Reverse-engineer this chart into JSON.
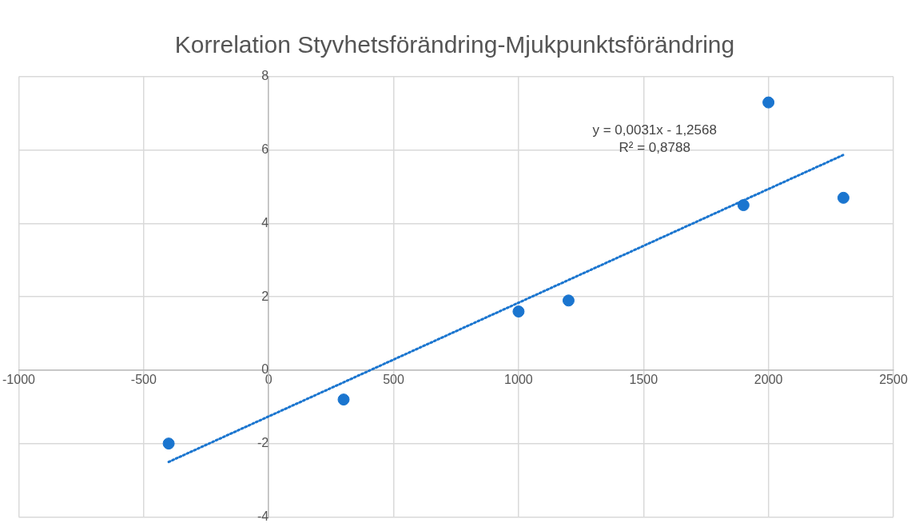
{
  "chart_data": {
    "type": "scatter",
    "title": "Korrelation Styvhetsförändring-Mjukpunktsförändring",
    "series": [
      {
        "type": "scatter",
        "color": "#1a75cf",
        "x": [
          -400,
          300,
          1000,
          1200,
          1900,
          2000,
          2300
        ],
        "values": [
          -2,
          -0.8,
          1.6,
          1.9,
          4.5,
          7.3,
          4.7
        ],
        "marker": "circle"
      },
      {
        "type": "line",
        "color": "#1a75cf",
        "x": [
          -400,
          2300
        ],
        "values": [
          -2.5,
          5.87
        ],
        "line_style": "dotted",
        "marker": "none"
      }
    ],
    "xlim": [
      -1000,
      2500
    ],
    "xticks": [
      -1000,
      -500,
      0,
      500,
      1000,
      1500,
      2000,
      2500
    ],
    "ylim": [
      -4,
      8
    ],
    "yticks": [
      -4,
      -2,
      0,
      2,
      4,
      6,
      8
    ],
    "grid": true,
    "legend": false,
    "annotations": [
      "y = 0,0031x - 1,2568",
      "R² = 0,8788"
    ]
  }
}
